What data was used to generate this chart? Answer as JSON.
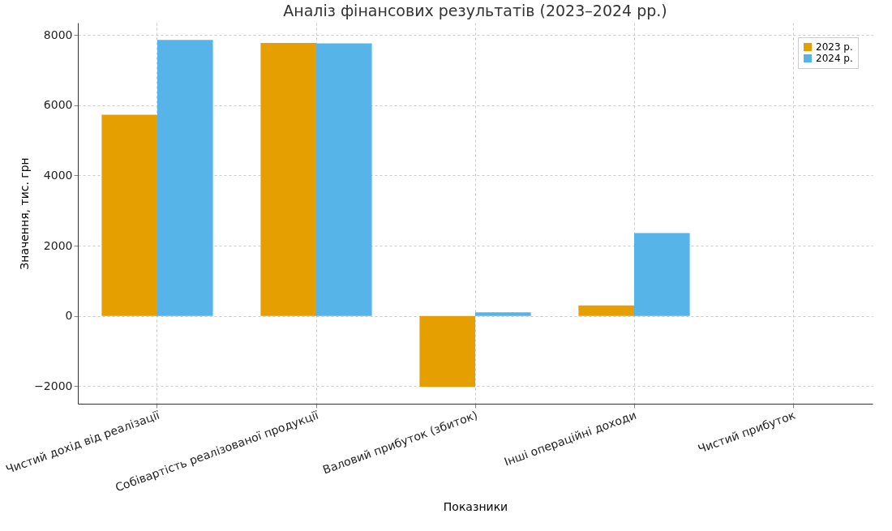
{
  "chart_data": {
    "type": "bar",
    "title": "Аналіз фінансових результатів (2023–2024 рр.)",
    "xlabel": "Показники",
    "ylabel": "Значення, тис. грн",
    "categories": [
      "Чистий дохід від реалізації",
      "Собівартість реалізованої продукції",
      "Валовий прибуток (збиток)",
      "Інші операційні доходи",
      "Чистий прибуток"
    ],
    "series": [
      {
        "name": "2023 р.",
        "color": "#e69f00",
        "values": [
          5730,
          7770,
          -2020,
          300,
          null
        ]
      },
      {
        "name": "2024 р.",
        "color": "#56b4e9",
        "values": [
          7860,
          7760,
          100,
          2360,
          null
        ]
      }
    ],
    "ylim": [
      -2500,
      8350
    ],
    "yticks": [
      -2000,
      0,
      2000,
      4000,
      6000,
      8000
    ],
    "grid": true,
    "legend": "top right"
  }
}
